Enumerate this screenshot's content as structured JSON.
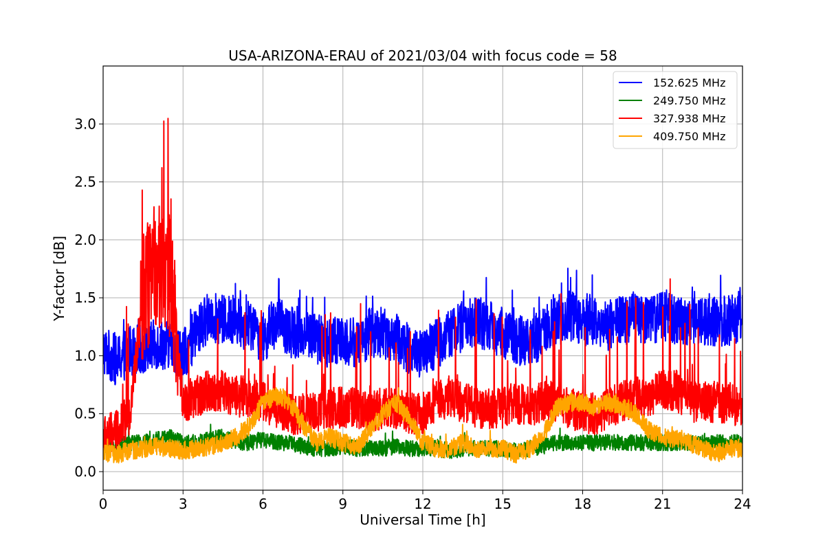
{
  "chart_data": {
    "type": "line",
    "title": "USA-ARIZONA-ERAU of 2021/03/04 with focus code = 58",
    "xlabel": "Universal Time [h]",
    "ylabel": "Y-factor [dB]",
    "xlim": [
      0,
      24
    ],
    "ylim": [
      -0.16,
      3.5
    ],
    "xticks": [
      0,
      3,
      6,
      9,
      12,
      15,
      18,
      21,
      24
    ],
    "xtick_labels": [
      "0",
      "3",
      "6",
      "9",
      "12",
      "15",
      "18",
      "21",
      "24"
    ],
    "yticks": [
      0.0,
      0.5,
      1.0,
      1.5,
      2.0,
      2.5,
      3.0
    ],
    "ytick_labels": [
      "0.0",
      "0.5",
      "1.0",
      "1.5",
      "2.0",
      "2.5",
      "3.0"
    ],
    "grid": true,
    "legend_position": "top-right",
    "series": [
      {
        "name": "152.625 MHz",
        "color": "#0000ff",
        "x": [
          0,
          0.5,
          1,
          1.5,
          2,
          2.5,
          3,
          3.5,
          4,
          4.5,
          5,
          5.5,
          6,
          6.5,
          7,
          7.5,
          8,
          8.5,
          9,
          9.5,
          10,
          10.5,
          11,
          11.5,
          12,
          12.5,
          13,
          13.5,
          14,
          14.5,
          15,
          15.5,
          16,
          16.5,
          17,
          17.5,
          18,
          18.5,
          19,
          19.5,
          20,
          20.5,
          21,
          21.5,
          22,
          22.5,
          23,
          23.5,
          24
        ],
        "y": [
          1.05,
          0.95,
          1.05,
          1.05,
          1.1,
          1.1,
          1.0,
          1.2,
          1.35,
          1.3,
          1.3,
          1.25,
          1.15,
          1.3,
          1.2,
          1.2,
          1.15,
          1.1,
          1.15,
          1.1,
          1.2,
          1.2,
          1.15,
          1.05,
          1.0,
          1.1,
          1.2,
          1.25,
          1.3,
          1.25,
          1.2,
          1.15,
          1.1,
          1.2,
          1.3,
          1.35,
          1.3,
          1.3,
          1.25,
          1.3,
          1.35,
          1.3,
          1.35,
          1.3,
          1.3,
          1.3,
          1.3,
          1.3,
          1.35
        ]
      },
      {
        "name": "249.750 MHz",
        "color": "#008000",
        "x": [
          0,
          0.5,
          1,
          1.5,
          2,
          2.5,
          3,
          3.5,
          4,
          4.5,
          5,
          5.5,
          6,
          6.5,
          7,
          7.5,
          8,
          8.5,
          9,
          9.5,
          10,
          10.5,
          11,
          11.5,
          12,
          12.5,
          13,
          13.5,
          14,
          14.5,
          15,
          15.5,
          16,
          16.5,
          17,
          17.5,
          18,
          18.5,
          19,
          19.5,
          20,
          20.5,
          21,
          21.5,
          22,
          22.5,
          23,
          23.5,
          24
        ],
        "y": [
          0.2,
          0.22,
          0.25,
          0.25,
          0.28,
          0.3,
          0.25,
          0.25,
          0.28,
          0.3,
          0.25,
          0.25,
          0.28,
          0.25,
          0.25,
          0.22,
          0.2,
          0.2,
          0.22,
          0.2,
          0.2,
          0.2,
          0.22,
          0.2,
          0.2,
          0.2,
          0.18,
          0.2,
          0.2,
          0.2,
          0.2,
          0.18,
          0.2,
          0.22,
          0.25,
          0.25,
          0.25,
          0.25,
          0.25,
          0.25,
          0.25,
          0.25,
          0.25,
          0.25,
          0.25,
          0.25,
          0.25,
          0.25,
          0.25
        ]
      },
      {
        "name": "327.938 MHz",
        "color": "#ff0000",
        "x": [
          0,
          0.5,
          1,
          1.5,
          2,
          2.5,
          3,
          3.5,
          4,
          4.5,
          5,
          5.5,
          6,
          6.5,
          7,
          7.5,
          8,
          8.5,
          9,
          9.5,
          10,
          10.5,
          11,
          11.5,
          12,
          12.5,
          13,
          13.5,
          14,
          14.5,
          15,
          15.5,
          16,
          16.5,
          17,
          17.5,
          18,
          18.5,
          19,
          19.5,
          20,
          20.5,
          21,
          21.5,
          22,
          22.5,
          23,
          23.5,
          24
        ],
        "y": [
          0.3,
          0.35,
          0.5,
          1.5,
          1.8,
          1.7,
          0.6,
          0.65,
          0.7,
          0.7,
          0.65,
          0.65,
          0.6,
          0.55,
          0.5,
          0.5,
          0.5,
          0.55,
          0.55,
          0.55,
          0.5,
          0.55,
          0.55,
          0.5,
          0.5,
          0.6,
          0.65,
          0.6,
          0.55,
          0.55,
          0.55,
          0.6,
          0.55,
          0.6,
          0.6,
          0.55,
          0.5,
          0.5,
          0.55,
          0.6,
          0.65,
          0.65,
          0.7,
          0.7,
          0.6,
          0.6,
          0.6,
          0.6,
          0.55
        ]
      },
      {
        "name": "409.750 MHz",
        "color": "#ffa500",
        "x": [
          0,
          0.5,
          1,
          1.5,
          2,
          2.5,
          3,
          3.5,
          4,
          4.5,
          5,
          5.5,
          6,
          6.5,
          7,
          7.5,
          8,
          8.5,
          9,
          9.5,
          10,
          10.5,
          11,
          11.5,
          12,
          12.5,
          13,
          13.5,
          14,
          14.5,
          15,
          15.5,
          16,
          16.5,
          17,
          17.5,
          18,
          18.5,
          19,
          19.5,
          20,
          20.5,
          21,
          21.5,
          22,
          22.5,
          23,
          23.5,
          24
        ],
        "y": [
          0.15,
          0.15,
          0.18,
          0.2,
          0.22,
          0.2,
          0.18,
          0.2,
          0.22,
          0.25,
          0.3,
          0.4,
          0.6,
          0.65,
          0.6,
          0.4,
          0.25,
          0.3,
          0.25,
          0.2,
          0.35,
          0.5,
          0.6,
          0.45,
          0.25,
          0.2,
          0.2,
          0.25,
          0.2,
          0.2,
          0.2,
          0.15,
          0.2,
          0.3,
          0.55,
          0.6,
          0.6,
          0.55,
          0.6,
          0.55,
          0.5,
          0.35,
          0.3,
          0.28,
          0.25,
          0.2,
          0.15,
          0.2,
          0.2
        ]
      }
    ]
  }
}
